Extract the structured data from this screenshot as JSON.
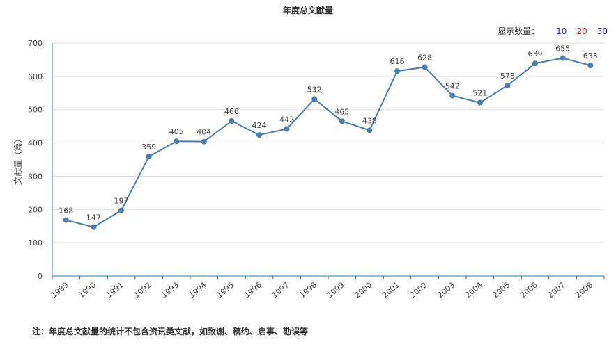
{
  "title": "年度总文献量",
  "display_count": {
    "label": "显示数量：",
    "options": [
      {
        "label": "10",
        "color": "#1f1fd6"
      },
      {
        "label": "20",
        "color": "#d62020"
      },
      {
        "label": "30",
        "color": "#1f1f8f"
      }
    ]
  },
  "footnote": "注：年度总文献量的统计不包含资讯类文献，如致谢、稿约、启事、勘误等",
  "colors": {
    "line": "#4a7eb0",
    "axis": "#1e7ab8",
    "grid": "#dddddd"
  },
  "chart_data": {
    "type": "line",
    "title": "年度总文献量",
    "xlabel": "",
    "ylabel": "文献量（篇）",
    "ylim": [
      0,
      700
    ],
    "yticks": [
      0,
      100,
      200,
      300,
      400,
      500,
      600,
      700
    ],
    "grid": true,
    "categories": [
      "1989",
      "1990",
      "1991",
      "1992",
      "1993",
      "1994",
      "1995",
      "1996",
      "1997",
      "1998",
      "1999",
      "2000",
      "2001",
      "2002",
      "2003",
      "2004",
      "2005",
      "2006",
      "2007",
      "2008"
    ],
    "series": [
      {
        "values": [
          168,
          147,
          197,
          359,
          405,
          404,
          466,
          424,
          442,
          532,
          465,
          438,
          616,
          628,
          542,
          521,
          573,
          639,
          655,
          633
        ]
      }
    ]
  }
}
